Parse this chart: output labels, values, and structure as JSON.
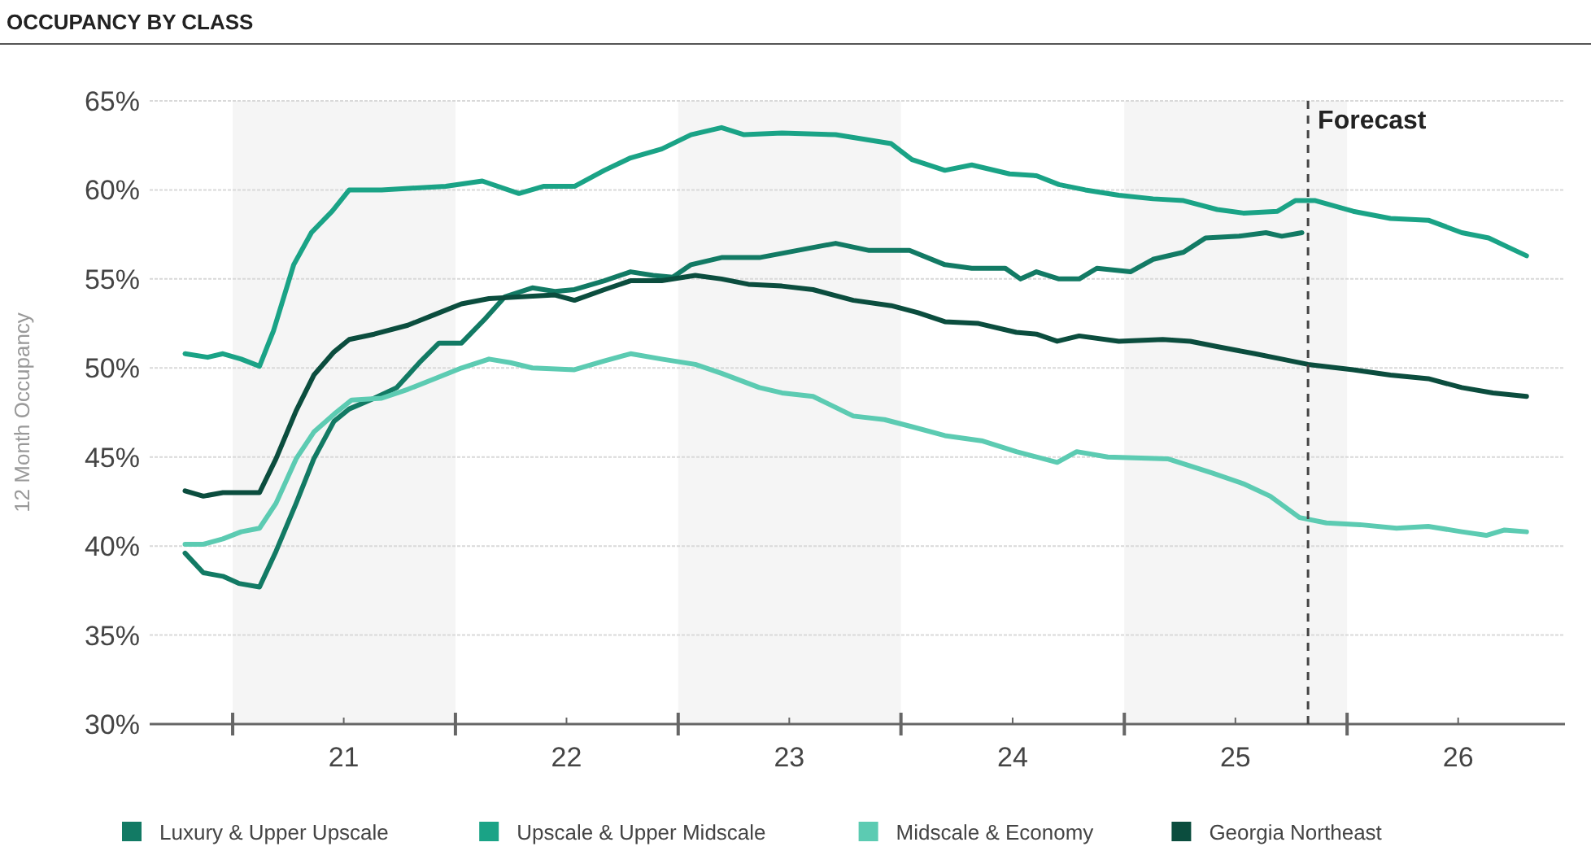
{
  "chart_data": {
    "type": "line",
    "title": "OCCUPANCY BY CLASS",
    "ylabel": "12 Month Occupancy",
    "xlim": [
      "2020-08-18",
      "2026-12-24"
    ],
    "ylim": [
      30,
      65
    ],
    "xticks": [
      {
        "value": "2021-01-01",
        "label": null
      },
      {
        "value": "2021-07-02",
        "label": "21"
      },
      {
        "value": "2022-01-01",
        "label": null
      },
      {
        "value": "2022-07-02",
        "label": "22"
      },
      {
        "value": "2023-01-01",
        "label": null
      },
      {
        "value": "2023-07-02",
        "label": "23"
      },
      {
        "value": "2024-01-01",
        "label": null
      },
      {
        "value": "2024-07-02",
        "label": "24"
      },
      {
        "value": "2025-01-01",
        "label": null
      },
      {
        "value": "2025-07-02",
        "label": "25"
      },
      {
        "value": "2026-01-01",
        "label": null
      },
      {
        "value": "2026-07-02",
        "label": "26"
      }
    ],
    "yticks": [
      {
        "value": 30,
        "label": "30%"
      },
      {
        "value": 35,
        "label": "35%"
      },
      {
        "value": 40,
        "label": "40%"
      },
      {
        "value": 45,
        "label": "45%"
      },
      {
        "value": 50,
        "label": "50%"
      },
      {
        "value": 55,
        "label": "55%"
      },
      {
        "value": 60,
        "label": "60%"
      },
      {
        "value": 65,
        "label": "65%"
      }
    ],
    "grid": "y",
    "legend": "bottom",
    "marker": "none",
    "line_style": "solid",
    "bands": [
      {
        "axis": "x",
        "from": "2021-01-01",
        "to": "2022-01-01",
        "color": "#f5f5f5"
      },
      {
        "axis": "x",
        "from": "2023-01-01",
        "to": "2024-01-01",
        "color": "#f5f5f5"
      },
      {
        "axis": "x",
        "from": "2025-01-01",
        "to": "2026-01-01",
        "color": "#f5f5f5"
      }
    ],
    "ref_lines": [
      {
        "axis": "x",
        "value": "2025-10-29",
        "label": "Forecast",
        "color": "#444444",
        "line_style": "dashed"
      }
    ],
    "series": [
      {
        "name": "Luxury & Upper Upscale",
        "color": "#127a64",
        "x": [
          "2020-10-15",
          "2020-11-14",
          "2020-12-16",
          "2021-01-11",
          "2021-02-14",
          "2021-03-13",
          "2021-04-15",
          "2021-05-14",
          "2021-06-16",
          "2021-07-11",
          "2021-08-21",
          "2021-09-27",
          "2021-11-03",
          "2021-12-05",
          "2022-01-11",
          "2022-02-17",
          "2022-03-23",
          "2022-05-07",
          "2022-06-13",
          "2022-07-15",
          "2022-09-02",
          "2022-10-15",
          "2022-11-21",
          "2022-12-23",
          "2023-01-22",
          "2023-03-13",
          "2023-05-14",
          "2023-07-15",
          "2023-09-16",
          "2023-11-10",
          "2024-01-15",
          "2024-03-13",
          "2024-04-26",
          "2024-06-20",
          "2024-07-15",
          "2024-08-10",
          "2024-09-16",
          "2024-10-19",
          "2024-11-17",
          "2025-01-11",
          "2025-02-17",
          "2025-04-08",
          "2025-05-14",
          "2025-07-08",
          "2025-08-21",
          "2025-09-16",
          "2025-10-19"
        ],
        "values": [
          39.6,
          38.5,
          38.3,
          37.9,
          37.7,
          39.7,
          42.4,
          44.9,
          47.0,
          47.7,
          48.3,
          48.9,
          50.3,
          51.4,
          51.4,
          52.7,
          54.0,
          54.5,
          54.3,
          54.4,
          54.9,
          55.4,
          55.2,
          55.1,
          55.8,
          56.2,
          56.2,
          56.6,
          57.0,
          56.6,
          56.6,
          55.8,
          55.6,
          55.6,
          55.0,
          55.4,
          55.0,
          55.0,
          55.6,
          55.4,
          56.1,
          56.5,
          57.3,
          57.4,
          57.6,
          57.4,
          57.6
        ]
      },
      {
        "name": "Upscale & Upper Midscale",
        "color": "#1aa386",
        "x": [
          "2020-10-15",
          "2020-11-21",
          "2020-12-16",
          "2021-01-15",
          "2021-02-14",
          "2021-03-09",
          "2021-04-11",
          "2021-05-10",
          "2021-06-13",
          "2021-07-11",
          "2021-09-02",
          "2021-10-22",
          "2021-12-16",
          "2022-02-14",
          "2022-04-15",
          "2022-05-25",
          "2022-07-15",
          "2022-09-02",
          "2022-10-15",
          "2022-12-05",
          "2023-01-22",
          "2023-03-13",
          "2023-04-19",
          "2023-06-20",
          "2023-09-16",
          "2023-12-16",
          "2024-01-19",
          "2024-03-13",
          "2024-04-26",
          "2024-06-27",
          "2024-08-10",
          "2024-09-16",
          "2024-10-29",
          "2024-12-23",
          "2025-02-17",
          "2025-04-08",
          "2025-06-02",
          "2025-07-15",
          "2025-09-09",
          "2025-10-08",
          "2025-11-10",
          "2026-01-11",
          "2026-03-13",
          "2026-05-14",
          "2026-07-08",
          "2026-08-21",
          "2026-09-27",
          "2026-10-22"
        ],
        "values": [
          50.8,
          50.6,
          50.8,
          50.5,
          50.1,
          52.1,
          55.8,
          57.6,
          58.8,
          60.0,
          60.0,
          60.1,
          60.2,
          60.5,
          59.8,
          60.2,
          60.2,
          61.1,
          61.8,
          62.3,
          63.1,
          63.5,
          63.1,
          63.2,
          63.1,
          62.6,
          61.7,
          61.1,
          61.4,
          60.9,
          60.8,
          60.3,
          60.0,
          59.7,
          59.5,
          59.4,
          58.9,
          58.7,
          58.8,
          59.4,
          59.4,
          58.8,
          58.4,
          58.3,
          57.6,
          57.3,
          56.7,
          56.3
        ]
      },
      {
        "name": "Midscale & Economy",
        "color": "#5ccbb2",
        "x": [
          "2020-10-15",
          "2020-11-14",
          "2020-12-16",
          "2021-01-15",
          "2021-02-14",
          "2021-03-13",
          "2021-04-15",
          "2021-05-14",
          "2021-06-16",
          "2021-07-15",
          "2021-09-02",
          "2021-10-15",
          "2021-11-28",
          "2022-01-11",
          "2022-02-25",
          "2022-04-01",
          "2022-05-07",
          "2022-07-15",
          "2022-09-02",
          "2022-10-15",
          "2022-12-05",
          "2023-01-29",
          "2023-03-13",
          "2023-05-14",
          "2023-06-20",
          "2023-08-10",
          "2023-10-15",
          "2023-12-05",
          "2024-01-19",
          "2024-03-13",
          "2024-05-14",
          "2024-07-08",
          "2024-09-13",
          "2024-10-15",
          "2024-12-05",
          "2025-03-13",
          "2025-05-25",
          "2025-07-15",
          "2025-08-28",
          "2025-10-15",
          "2025-11-28",
          "2026-01-22",
          "2026-03-23",
          "2026-05-14",
          "2026-07-08",
          "2026-08-17",
          "2026-09-16",
          "2026-10-22"
        ],
        "values": [
          40.1,
          40.1,
          40.4,
          40.8,
          41.0,
          42.4,
          44.9,
          46.4,
          47.4,
          48.2,
          48.3,
          48.8,
          49.4,
          50.0,
          50.5,
          50.3,
          50.0,
          49.9,
          50.4,
          50.8,
          50.5,
          50.2,
          49.7,
          48.9,
          48.6,
          48.4,
          47.3,
          47.1,
          46.7,
          46.2,
          45.9,
          45.3,
          44.7,
          45.3,
          45.0,
          44.9,
          44.1,
          43.5,
          42.8,
          41.6,
          41.3,
          41.2,
          41.0,
          41.1,
          40.8,
          40.6,
          40.9,
          40.8
        ]
      },
      {
        "name": "Georgia Northeast",
        "color": "#0b4d3e",
        "x": [
          "2020-10-15",
          "2020-11-14",
          "2020-12-16",
          "2021-02-14",
          "2021-03-13",
          "2021-04-15",
          "2021-05-14",
          "2021-06-16",
          "2021-07-11",
          "2021-08-21",
          "2021-10-15",
          "2021-11-28",
          "2022-01-11",
          "2022-02-25",
          "2022-04-19",
          "2022-06-13",
          "2022-07-15",
          "2022-09-02",
          "2022-10-15",
          "2022-12-05",
          "2023-01-29",
          "2023-03-13",
          "2023-04-26",
          "2023-06-20",
          "2023-08-10",
          "2023-10-15",
          "2023-12-16",
          "2024-01-29",
          "2024-03-13",
          "2024-05-07",
          "2024-07-08",
          "2024-08-10",
          "2024-09-13",
          "2024-10-19",
          "2024-12-23",
          "2025-03-05",
          "2025-04-19",
          "2025-06-02",
          "2025-08-03",
          "2025-09-16",
          "2025-10-29",
          "2026-01-11",
          "2026-03-13",
          "2026-05-14",
          "2026-07-08",
          "2026-08-28",
          "2026-10-22"
        ],
        "values": [
          43.1,
          42.8,
          43.0,
          43.0,
          44.9,
          47.6,
          49.6,
          50.9,
          51.6,
          51.9,
          52.4,
          53.0,
          53.6,
          53.9,
          54.0,
          54.1,
          53.8,
          54.4,
          54.9,
          54.9,
          55.2,
          55.0,
          54.7,
          54.6,
          54.4,
          53.8,
          53.5,
          53.1,
          52.6,
          52.5,
          52.0,
          51.9,
          51.5,
          51.8,
          51.5,
          51.6,
          51.5,
          51.2,
          50.8,
          50.5,
          50.2,
          49.9,
          49.6,
          49.4,
          48.9,
          48.6,
          48.4
        ]
      }
    ]
  }
}
